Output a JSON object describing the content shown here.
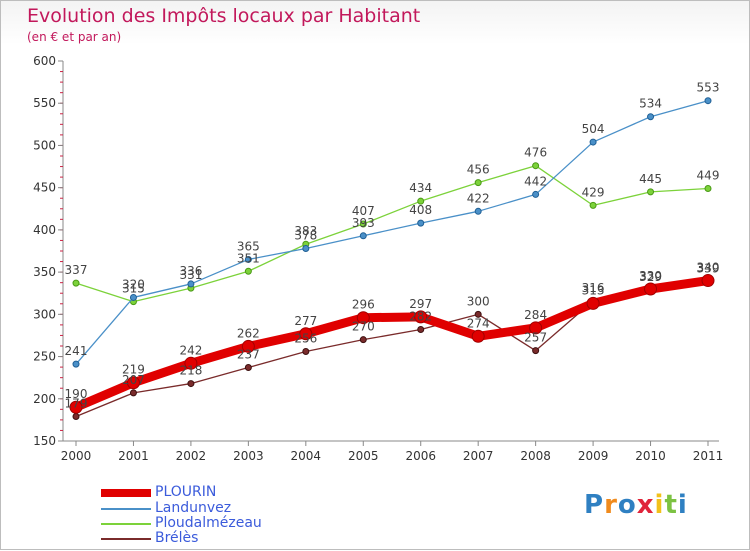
{
  "title": "Evolution des Impôts locaux par Habitant",
  "subtitle": "(en € et par an)",
  "logo": {
    "text": "Proxiti"
  },
  "chart_data": {
    "type": "line",
    "x": [
      "2000",
      "2001",
      "2002",
      "2003",
      "2004",
      "2005",
      "2006",
      "2007",
      "2008",
      "2009",
      "2010",
      "2011"
    ],
    "ylim": [
      150,
      600
    ],
    "yticks": [
      150,
      200,
      250,
      300,
      350,
      400,
      450,
      500,
      550,
      600
    ],
    "grid": false,
    "legend_position": "bottom-left",
    "series": [
      {
        "name": "PLOURIN",
        "color": "#e00000",
        "values": [
          190,
          219,
          242,
          262,
          277,
          296,
          297,
          274,
          284,
          313,
          330,
          340
        ],
        "labels": [
          "190",
          "219",
          "242",
          "262",
          "277",
          "296",
          "297",
          "274",
          "284",
          "313",
          "330",
          "340"
        ]
      },
      {
        "name": "Landunvez",
        "color": "#4a90c8",
        "values": [
          241,
          320,
          336,
          365,
          378,
          393,
          408,
          422,
          442,
          504,
          534,
          553
        ],
        "labels": [
          "241",
          "320",
          "336",
          "365",
          "378",
          "393",
          "408",
          "422",
          "442",
          "504",
          "534",
          "553"
        ]
      },
      {
        "name": "Ploudalmézeau",
        "color": "#7cd23a",
        "values": [
          337,
          315,
          331,
          351,
          383,
          407,
          434,
          456,
          476,
          429,
          445,
          449
        ],
        "labels": [
          "337",
          "315",
          "331",
          "351",
          "383",
          "407",
          "434",
          "456",
          "476",
          "429",
          "445",
          "449"
        ]
      },
      {
        "name": "Brélès",
        "color": "#7a2b2b",
        "values": [
          179,
          207,
          218,
          237,
          256,
          270,
          282,
          300,
          257,
          316,
          329,
          339
        ],
        "labels": [
          "179",
          "207",
          "218",
          "237",
          "256",
          "270",
          "282",
          "300",
          "257",
          "316",
          "329",
          "339"
        ]
      }
    ]
  }
}
